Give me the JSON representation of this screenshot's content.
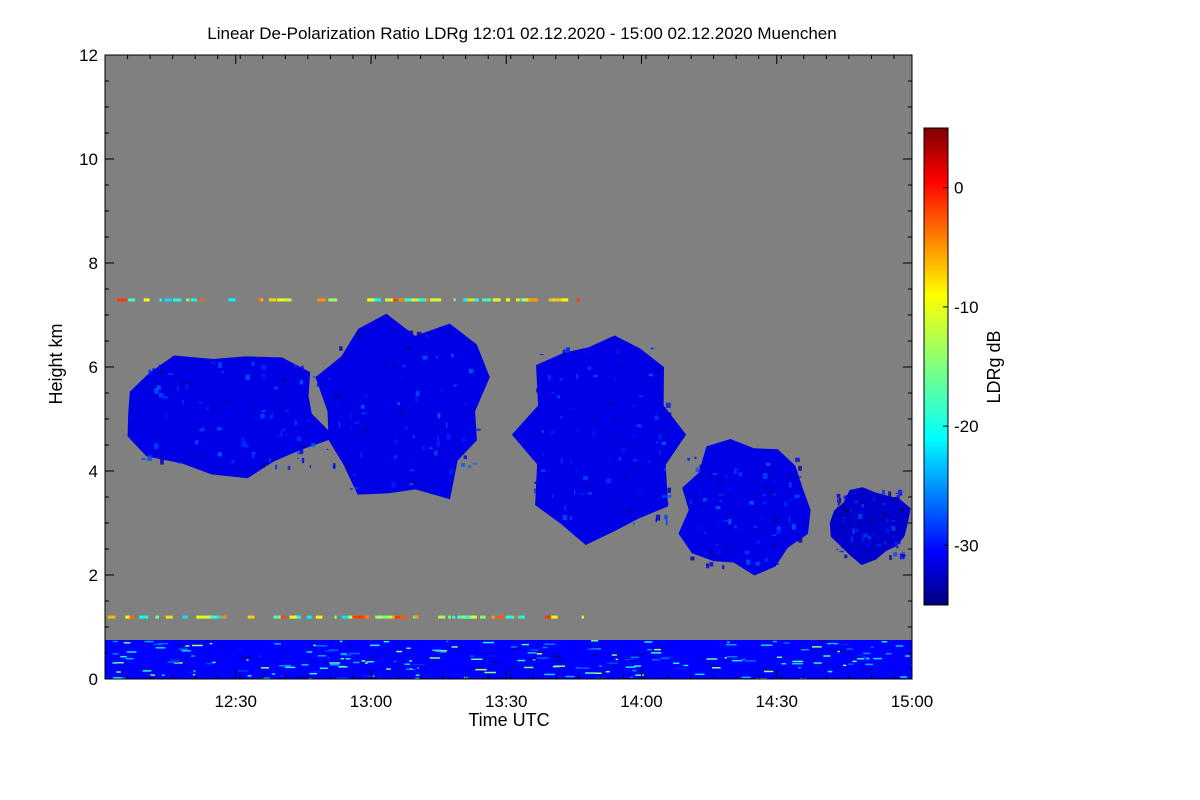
{
  "chart_data": {
    "type": "heatmap",
    "title": "Linear De-Polarization Ratio LDRg   12:01 02.12.2020 - 15:00 02.12.2020 Muenchen",
    "xlabel": "Time UTC",
    "ylabel": "Height km",
    "xlim_minutes": [
      721,
      900
    ],
    "ylim_km": [
      0,
      12
    ],
    "x_ticks": [
      {
        "minutes": 750,
        "label": "12:30"
      },
      {
        "minutes": 780,
        "label": "13:00"
      },
      {
        "minutes": 810,
        "label": "13:30"
      },
      {
        "minutes": 840,
        "label": "14:00"
      },
      {
        "minutes": 870,
        "label": "14:30"
      },
      {
        "minutes": 900,
        "label": "15:00"
      }
    ],
    "y_ticks": [
      {
        "value": 0,
        "label": "0"
      },
      {
        "value": 2,
        "label": "2"
      },
      {
        "value": 4,
        "label": "4"
      },
      {
        "value": 6,
        "label": "6"
      },
      {
        "value": 8,
        "label": "8"
      },
      {
        "value": 10,
        "label": "10"
      },
      {
        "value": 12,
        "label": "12"
      }
    ],
    "colorbar": {
      "label": "LDRg dB",
      "range_db": [
        -35,
        5
      ],
      "ticks": [
        {
          "value": 0,
          "label": "0"
        },
        {
          "value": -10,
          "label": "-10"
        },
        {
          "value": -20,
          "label": "-20"
        },
        {
          "value": -30,
          "label": "-30"
        }
      ],
      "colormap": "jet"
    },
    "no_signal_color": "#808080",
    "features": [
      {
        "name": "cloud-1",
        "time_start_min": 724,
        "time_end_min": 773,
        "base_km": 3.8,
        "top_km": 6.4,
        "ldr_db": -31
      },
      {
        "name": "cloud-2",
        "time_start_min": 766,
        "time_end_min": 808,
        "base_km": 3.2,
        "top_km": 7.1,
        "ldr_db": -31
      },
      {
        "name": "cloud-3",
        "time_start_min": 812,
        "time_end_min": 850,
        "base_km": 2.6,
        "top_km": 6.8,
        "ldr_db": -31
      },
      {
        "name": "cloud-4",
        "time_start_min": 847,
        "time_end_min": 878,
        "base_km": 1.9,
        "top_km": 4.6,
        "ldr_db": -31
      },
      {
        "name": "cloud-5",
        "time_start_min": 881,
        "time_end_min": 900,
        "base_km": 2.2,
        "top_km": 3.8,
        "ldr_db": -32
      },
      {
        "name": "boundary-layer",
        "time_start_min": 721,
        "time_end_min": 900,
        "base_km": 0.0,
        "top_km": 0.75,
        "ldr_db": -30
      }
    ],
    "noise_layers_km": [
      7.3,
      1.2
    ]
  }
}
